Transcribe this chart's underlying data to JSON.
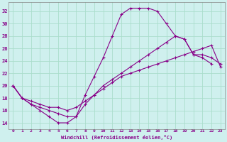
{
  "xlabel": "Windchill (Refroidissement éolien,°C)",
  "background_color": "#cff0ee",
  "grid_color": "#aaddcc",
  "line_color": "#880088",
  "xlim": [
    -0.5,
    23.5
  ],
  "ylim": [
    13.0,
    33.5
  ],
  "yticks": [
    14,
    16,
    18,
    20,
    22,
    24,
    26,
    28,
    30,
    32
  ],
  "xticks": [
    0,
    1,
    2,
    3,
    4,
    5,
    6,
    7,
    8,
    9,
    10,
    11,
    12,
    13,
    14,
    15,
    16,
    17,
    18,
    19,
    20,
    21,
    22,
    23
  ],
  "series1_x": [
    0,
    1,
    2,
    3,
    4,
    5,
    6,
    7,
    8,
    9,
    10,
    11,
    12,
    13,
    14,
    15,
    16,
    17,
    18,
    19,
    20,
    21,
    22
  ],
  "series1_y": [
    20,
    18,
    17,
    16,
    15,
    14,
    14,
    15,
    18.5,
    21.5,
    24.5,
    28,
    31.5,
    32.5,
    32.5,
    32.5,
    32,
    30,
    28,
    27.5,
    25,
    24.5,
    23.5
  ],
  "series2_x": [
    0,
    1,
    2,
    3,
    4,
    5,
    6,
    7,
    8,
    9,
    10,
    11,
    12,
    13,
    14,
    15,
    16,
    17,
    18,
    19,
    20,
    21,
    22,
    23
  ],
  "series2_y": [
    20,
    18,
    17,
    16.5,
    16,
    15.5,
    15,
    15,
    17,
    18.5,
    20,
    21,
    22,
    23,
    24,
    25,
    26,
    27,
    28,
    27.5,
    25,
    25,
    24.5,
    23.5
  ],
  "series3_x": [
    0,
    1,
    2,
    3,
    4,
    5,
    6,
    7,
    8,
    9,
    10,
    11,
    12,
    13,
    14,
    15,
    16,
    17,
    18,
    19,
    20,
    21,
    22,
    23
  ],
  "series3_y": [
    20,
    18,
    17.5,
    17,
    16.5,
    16.5,
    16,
    16.5,
    17.5,
    18.5,
    19.5,
    20.5,
    21.5,
    22,
    22.5,
    23,
    23.5,
    24,
    24.5,
    25,
    25.5,
    26,
    26.5,
    23
  ]
}
